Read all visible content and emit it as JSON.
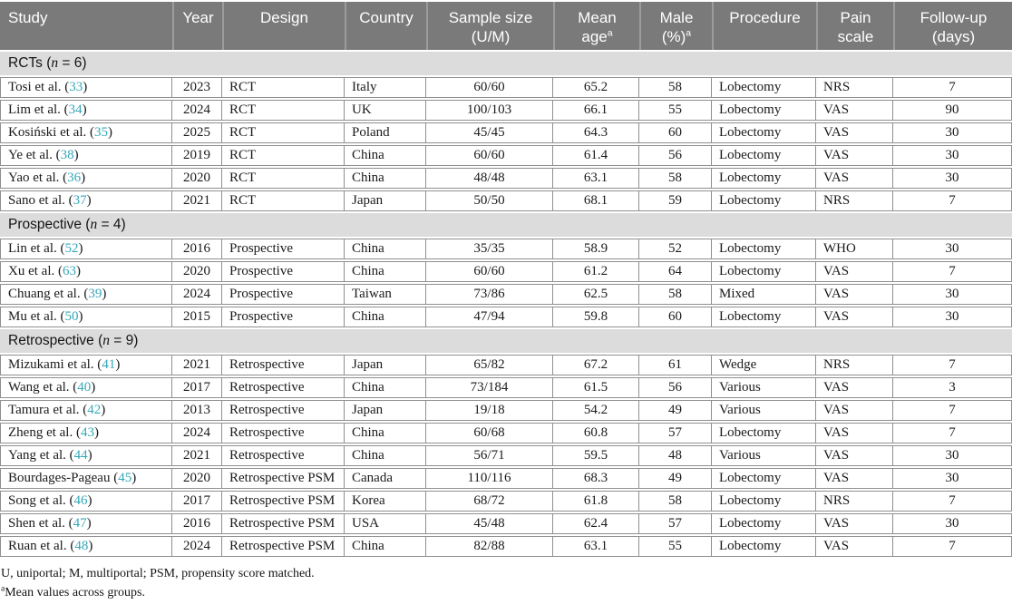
{
  "colors": {
    "header_bg": "#7a7a7a",
    "section_bg": "#dcdcdc",
    "row_border": "#8f8f8f",
    "citation_accent": "#35a7b8"
  },
  "table": {
    "columns": [
      {
        "key": "study",
        "lines": [
          "Study"
        ],
        "align": "left"
      },
      {
        "key": "year",
        "lines": [
          "Year"
        ]
      },
      {
        "key": "design",
        "lines": [
          "Design"
        ]
      },
      {
        "key": "country",
        "lines": [
          "Country"
        ]
      },
      {
        "key": "sample-size",
        "lines": [
          "Sample size",
          "(U/M)"
        ]
      },
      {
        "key": "mean-age",
        "lines": [
          "Mean",
          "age"
        ],
        "sup": "a"
      },
      {
        "key": "male-pct",
        "lines": [
          "Male",
          "(%)"
        ],
        "sup": "a"
      },
      {
        "key": "procedure",
        "lines": [
          "Procedure"
        ]
      },
      {
        "key": "pain-scale",
        "lines": [
          "Pain",
          "scale"
        ]
      },
      {
        "key": "follow-up",
        "lines": [
          "Follow-up",
          "(days)"
        ]
      }
    ],
    "sections": [
      {
        "title_pre": "RCTs (",
        "title_var": "n",
        "title_post": " = 6)",
        "rows": [
          {
            "study_pre": "Tosi et al. (",
            "ref": "33",
            "study_post": ")",
            "year": "2023",
            "design": "RCT",
            "country": "Italy",
            "sample_size": "60/60",
            "mean_age": "65.2",
            "male_pct": "58",
            "procedure": "Lobectomy",
            "pain_scale": "NRS",
            "followup_days": "7"
          },
          {
            "study_pre": "Lim et al. (",
            "ref": "34",
            "study_post": ")",
            "year": "2024",
            "design": "RCT",
            "country": "UK",
            "sample_size": "100/103",
            "mean_age": "66.1",
            "male_pct": "55",
            "procedure": "Lobectomy",
            "pain_scale": "VAS",
            "followup_days": "90"
          },
          {
            "study_pre": "Kosiński et al. (",
            "ref": "35",
            "study_post": ")",
            "year": "2025",
            "design": "RCT",
            "country": "Poland",
            "sample_size": "45/45",
            "mean_age": "64.3",
            "male_pct": "60",
            "procedure": "Lobectomy",
            "pain_scale": "VAS",
            "followup_days": "30"
          },
          {
            "study_pre": "Ye et al. (",
            "ref": "38",
            "study_post": ")",
            "year": "2019",
            "design": "RCT",
            "country": "China",
            "sample_size": "60/60",
            "mean_age": "61.4",
            "male_pct": "56",
            "procedure": "Lobectomy",
            "pain_scale": "VAS",
            "followup_days": "30"
          },
          {
            "study_pre": "Yao et al. (",
            "ref": "36",
            "study_post": ")",
            "year": "2020",
            "design": "RCT",
            "country": "China",
            "sample_size": "48/48",
            "mean_age": "63.1",
            "male_pct": "58",
            "procedure": "Lobectomy",
            "pain_scale": "VAS",
            "followup_days": "30"
          },
          {
            "study_pre": "Sano et al. (",
            "ref": "37",
            "study_post": ")",
            "year": "2021",
            "design": "RCT",
            "country": "Japan",
            "sample_size": "50/50",
            "mean_age": "68.1",
            "male_pct": "59",
            "procedure": "Lobectomy",
            "pain_scale": "NRS",
            "followup_days": "7"
          }
        ]
      },
      {
        "title_pre": "Prospective (",
        "title_var": "n",
        "title_post": " = 4)",
        "rows": [
          {
            "study_pre": "Lin et al. (",
            "ref": "52",
            "study_post": ")",
            "year": "2016",
            "design": "Prospective",
            "country": "China",
            "sample_size": "35/35",
            "mean_age": "58.9",
            "male_pct": "52",
            "procedure": "Lobectomy",
            "pain_scale": "WHO",
            "followup_days": "30"
          },
          {
            "study_pre": "Xu et al. (",
            "ref": "63",
            "study_post": ")",
            "year": "2020",
            "design": "Prospective",
            "country": "China",
            "sample_size": "60/60",
            "mean_age": "61.2",
            "male_pct": "64",
            "procedure": "Lobectomy",
            "pain_scale": "VAS",
            "followup_days": "7"
          },
          {
            "study_pre": "Chuang et al. (",
            "ref": "39",
            "study_post": ")",
            "year": "2024",
            "design": "Prospective",
            "country": "Taiwan",
            "sample_size": "73/86",
            "mean_age": "62.5",
            "male_pct": "58",
            "procedure": "Mixed",
            "pain_scale": "VAS",
            "followup_days": "30"
          },
          {
            "study_pre": "Mu et al. (",
            "ref": "50",
            "study_post": ")",
            "year": "2015",
            "design": "Prospective",
            "country": "China",
            "sample_size": "47/94",
            "mean_age": "59.8",
            "male_pct": "60",
            "procedure": "Lobectomy",
            "pain_scale": "VAS",
            "followup_days": "30"
          }
        ]
      },
      {
        "title_pre": "Retrospective (",
        "title_var": "n",
        "title_post": " = 9)",
        "rows": [
          {
            "study_pre": "Mizukami et al. (",
            "ref": "41",
            "study_post": ")",
            "year": "2021",
            "design": "Retrospective",
            "country": "Japan",
            "sample_size": "65/82",
            "mean_age": "67.2",
            "male_pct": "61",
            "procedure": "Wedge",
            "pain_scale": "NRS",
            "followup_days": "7"
          },
          {
            "study_pre": "Wang et al. (",
            "ref": "40",
            "study_post": ")",
            "year": "2017",
            "design": "Retrospective",
            "country": "China",
            "sample_size": "73/184",
            "mean_age": "61.5",
            "male_pct": "56",
            "procedure": "Various",
            "pain_scale": "VAS",
            "followup_days": "3"
          },
          {
            "study_pre": "Tamura et al. (",
            "ref": "42",
            "study_post": ")",
            "year": "2013",
            "design": "Retrospective",
            "country": "Japan",
            "sample_size": "19/18",
            "mean_age": "54.2",
            "male_pct": "49",
            "procedure": "Various",
            "pain_scale": "VAS",
            "followup_days": "7"
          },
          {
            "study_pre": "Zheng et al. (",
            "ref": "43",
            "study_post": ")",
            "year": "2024",
            "design": "Retrospective",
            "country": "China",
            "sample_size": "60/68",
            "mean_age": "60.8",
            "male_pct": "57",
            "procedure": "Lobectomy",
            "pain_scale": "VAS",
            "followup_days": "7"
          },
          {
            "study_pre": "Yang et al. (",
            "ref": "44",
            "study_post": ")",
            "year": "2021",
            "design": "Retrospective",
            "country": "China",
            "sample_size": "56/71",
            "mean_age": "59.5",
            "male_pct": "48",
            "procedure": "Various",
            "pain_scale": "VAS",
            "followup_days": "30"
          },
          {
            "study_pre": "Bourdages-Pageau (",
            "ref": "45",
            "study_post": ")",
            "year": "2020",
            "design": "Retrospective PSM",
            "country": "Canada",
            "sample_size": "110/116",
            "mean_age": "68.3",
            "male_pct": "49",
            "procedure": "Lobectomy",
            "pain_scale": "VAS",
            "followup_days": "30"
          },
          {
            "study_pre": "Song et al. (",
            "ref": "46",
            "study_post": ")",
            "year": "2017",
            "design": "Retrospective PSM",
            "country": "Korea",
            "sample_size": "68/72",
            "mean_age": "61.8",
            "male_pct": "58",
            "procedure": "Lobectomy",
            "pain_scale": "NRS",
            "followup_days": "7"
          },
          {
            "study_pre": "Shen et al. (",
            "ref": "47",
            "study_post": ")",
            "year": "2016",
            "design": "Retrospective PSM",
            "country": "USA",
            "sample_size": "45/48",
            "mean_age": "62.4",
            "male_pct": "57",
            "procedure": "Lobectomy",
            "pain_scale": "VAS",
            "followup_days": "30"
          },
          {
            "study_pre": "Ruan et al. (",
            "ref": "48",
            "study_post": ")",
            "year": "2024",
            "design": "Retrospective PSM",
            "country": "China",
            "sample_size": "82/88",
            "mean_age": "63.1",
            "male_pct": "55",
            "procedure": "Lobectomy",
            "pain_scale": "VAS",
            "followup_days": "7"
          }
        ]
      }
    ]
  },
  "footnotes": {
    "abbreviations": "U, uniportal; M, multiportal; PSM, propensity score matched.",
    "mean_values_sup": "a",
    "mean_values_text": "Mean values across groups."
  }
}
